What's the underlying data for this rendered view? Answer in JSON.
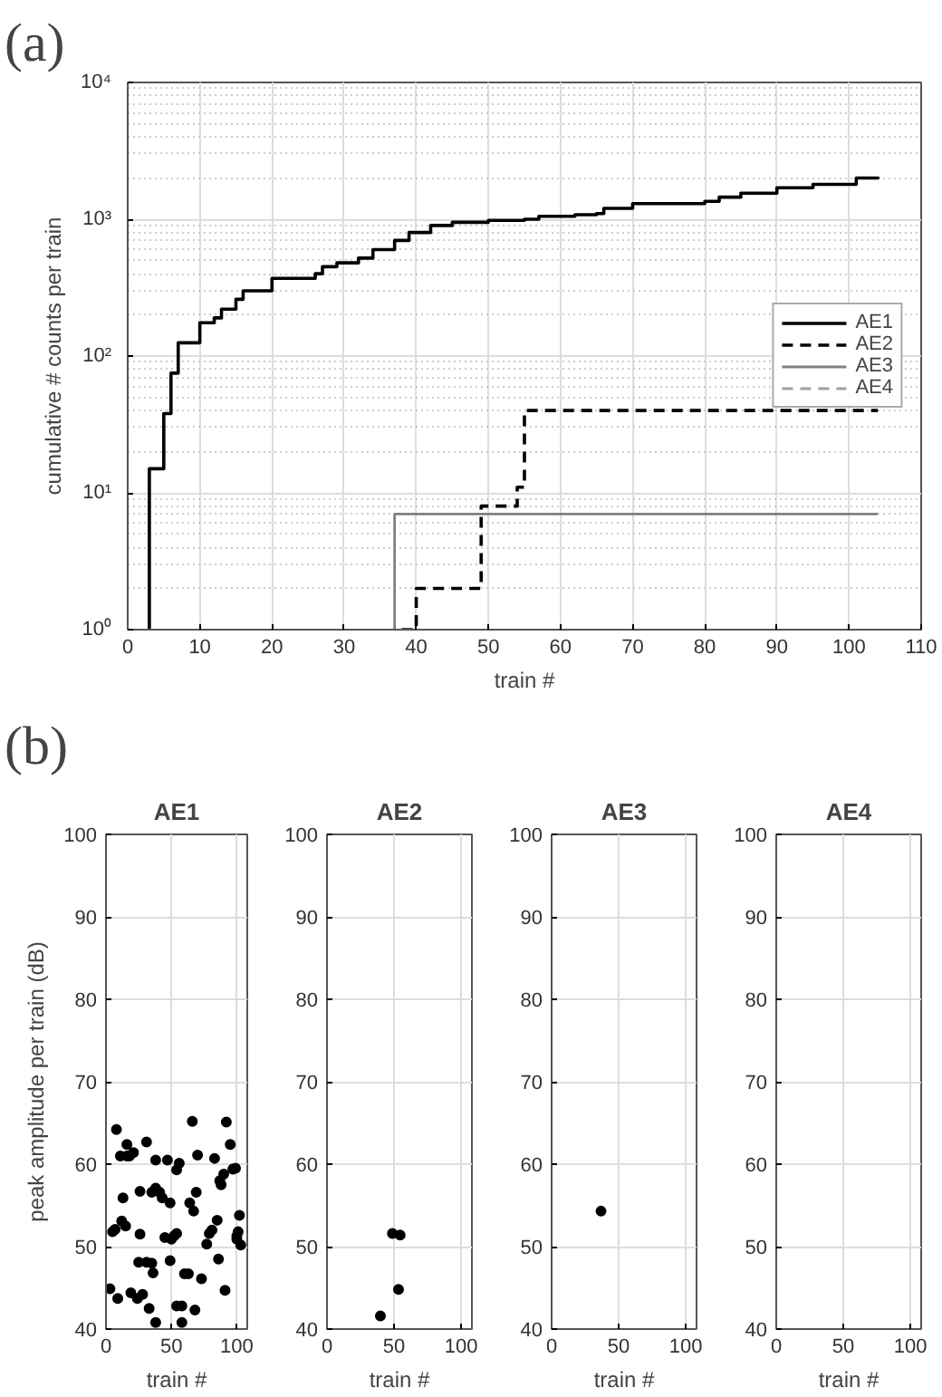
{
  "chart_data": [
    {
      "type": "step",
      "annotations": [
        "(a)"
      ],
      "xlabel": "train #",
      "ylabel": "cumulative # counts per train",
      "log": true,
      "grid": true,
      "legend": "right",
      "xlim": [
        0,
        110
      ],
      "xticks": [
        0,
        10,
        20,
        30,
        40,
        50,
        60,
        70,
        80,
        90,
        100,
        110
      ],
      "ylim": [
        1,
        10000
      ],
      "yticks": [
        {
          "value": 1,
          "label": "10⁰"
        },
        {
          "value": 10,
          "label": "10¹"
        },
        {
          "value": 100,
          "label": "10²"
        },
        {
          "value": 1000,
          "label": "10³"
        },
        {
          "value": 10000,
          "label": "10⁴"
        }
      ],
      "series": [
        {
          "name": "AE1",
          "color": "#000000",
          "line_style": "solid",
          "x": [
            3,
            3,
            5,
            6,
            7,
            10,
            12,
            13,
            15,
            16,
            20,
            26,
            27,
            29,
            32,
            34,
            37,
            39,
            42,
            45,
            50,
            55,
            57,
            62,
            65,
            66,
            70,
            80,
            82,
            85,
            90,
            95,
            101,
            104
          ],
          "values": [
            1,
            15,
            38,
            75,
            125,
            175,
            190,
            220,
            260,
            300,
            370,
            400,
            450,
            480,
            520,
            600,
            700,
            800,
            900,
            950,
            980,
            1000,
            1050,
            1080,
            1100,
            1200,
            1300,
            1350,
            1450,
            1550,
            1700,
            1800,
            2000,
            2050
          ]
        },
        {
          "name": "AE2",
          "color": "#000000",
          "line_style": "dashed",
          "x": [
            38,
            40,
            49,
            54,
            55,
            104
          ],
          "values": [
            1,
            2,
            8,
            11,
            40,
            40
          ]
        },
        {
          "name": "AE3",
          "color": "#808080",
          "line_style": "solid",
          "x": [
            37,
            37,
            104
          ],
          "values": [
            1,
            7,
            7
          ]
        },
        {
          "name": "AE4",
          "color": "#a0a0a0",
          "line_style": "dashed"
        }
      ]
    },
    {
      "type": "scatter",
      "annotations": [
        "(b)"
      ],
      "title": "AE1",
      "xlabel": "train #",
      "ylabel": "peak amplitude per train (dB)",
      "grid": true,
      "marker": "circle",
      "color": "#000000",
      "xlim": [
        0,
        108
      ],
      "xticks": [
        0,
        50,
        100
      ],
      "ylim": [
        40,
        100
      ],
      "yticks": [
        40,
        50,
        60,
        70,
        80,
        90,
        100
      ],
      "x": [
        3,
        9,
        8,
        11,
        5,
        7,
        12,
        15,
        13,
        16,
        16,
        18,
        21,
        19,
        24,
        28,
        25,
        31,
        35,
        26,
        26,
        31,
        35,
        36,
        33,
        38,
        38,
        38,
        41,
        43,
        47,
        45,
        50,
        49,
        49,
        52,
        54,
        54,
        56,
        54,
        58,
        58,
        60,
        63,
        64,
        67,
        66,
        69,
        70,
        68,
        73,
        77,
        79,
        81,
        83,
        85,
        86,
        87,
        88,
        90,
        91,
        92,
        95,
        97,
        99,
        100,
        101,
        102,
        103,
        100
      ],
      "values": [
        44.9,
        43.7,
        64.2,
        61,
        51.8,
        52.1,
        53.1,
        52.5,
        55.9,
        61,
        62.4,
        61,
        61.4,
        44.4,
        43.7,
        44.2,
        48.1,
        48.1,
        48,
        51.5,
        56.7,
        62.7,
        56.6,
        46.8,
        42.5,
        40.8,
        60.5,
        57.1,
        56.6,
        55.9,
        60.5,
        51.1,
        50.9,
        55.3,
        48.3,
        51.3,
        51.6,
        59.3,
        60.1,
        42.8,
        42.8,
        40.8,
        46.7,
        46.7,
        55.3,
        54.3,
        65.2,
        56.6,
        61.1,
        42.3,
        46.1,
        50.3,
        51.6,
        52,
        60.7,
        53.2,
        48.5,
        58,
        57.5,
        58.8,
        44.7,
        65.1,
        62.4,
        59.4,
        59.5,
        51.3,
        51.8,
        53.8,
        50.2,
        50.9
      ]
    },
    {
      "type": "scatter",
      "title": "AE2",
      "xlabel": "train #",
      "grid": true,
      "marker": "circle",
      "color": "#000000",
      "xlim": [
        0,
        108
      ],
      "xticks": [
        0,
        50,
        100
      ],
      "ylim": [
        40,
        100
      ],
      "yticks": [
        40,
        50,
        60,
        70,
        80,
        90,
        100
      ],
      "x": [
        39.8,
        48.8,
        54.5,
        53.3
      ],
      "values": [
        41.6,
        51.6,
        51.4,
        44.8
      ]
    },
    {
      "type": "scatter",
      "title": "AE3",
      "xlabel": "train #",
      "grid": true,
      "marker": "circle",
      "color": "#000000",
      "xlim": [
        0,
        108
      ],
      "xticks": [
        0,
        50,
        100
      ],
      "ylim": [
        40,
        100
      ],
      "yticks": [
        40,
        50,
        60,
        70,
        80,
        90,
        100
      ],
      "x": [
        36.8
      ],
      "values": [
        54.3
      ]
    },
    {
      "type": "scatter",
      "title": "AE4",
      "xlabel": "train #",
      "grid": true,
      "xlim": [
        0,
        108
      ],
      "xticks": [
        0,
        50,
        100
      ],
      "ylim": [
        40,
        100
      ],
      "yticks": [
        40,
        50,
        60,
        70,
        80,
        90,
        100
      ]
    }
  ]
}
